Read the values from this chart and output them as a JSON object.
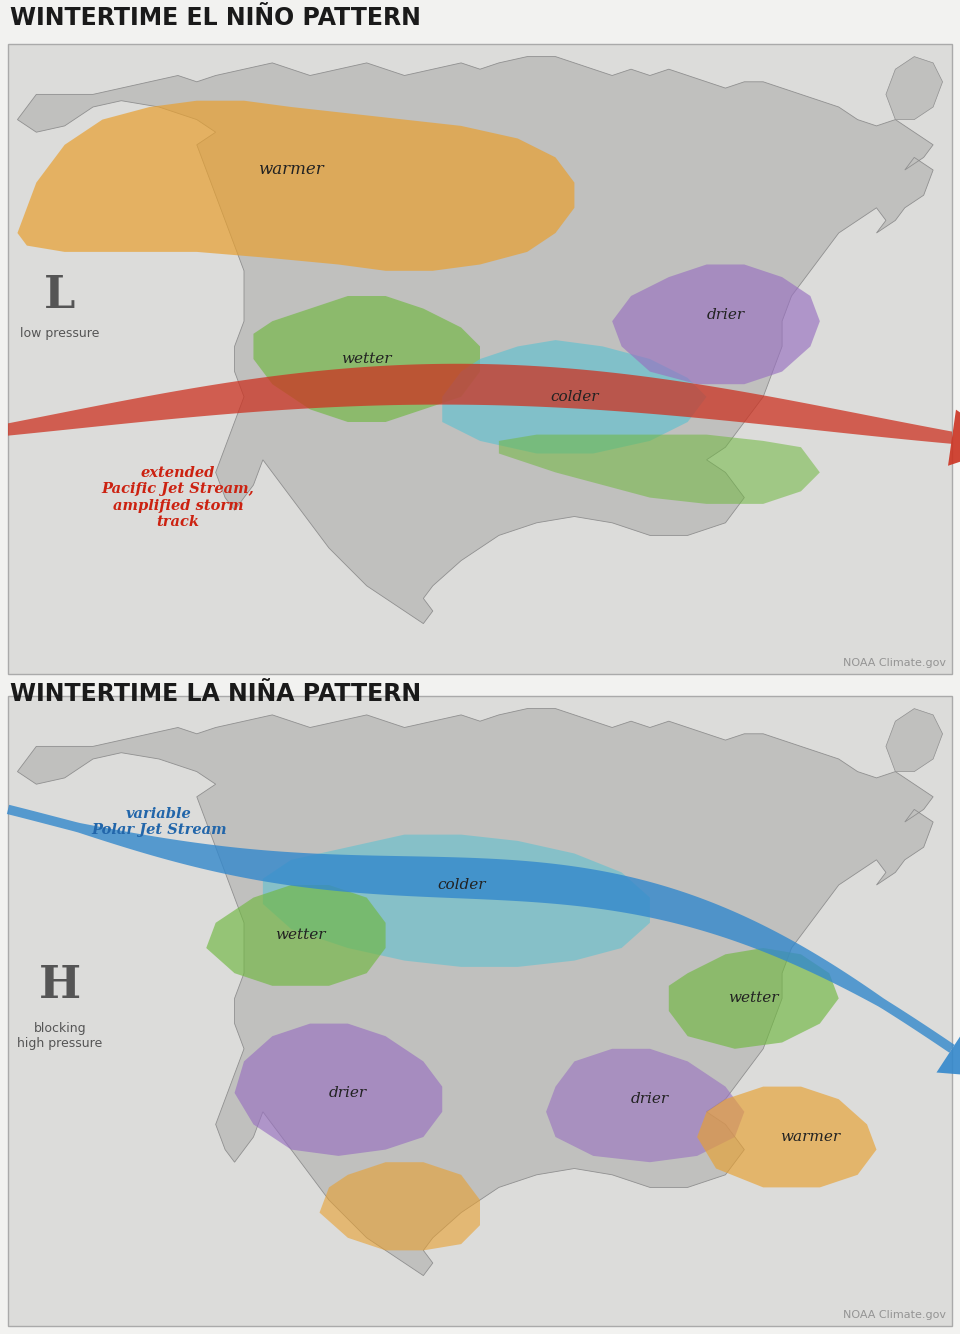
{
  "title1": "WINTERTIME EL NIÑO PATTERN",
  "title2": "WINTERTIME LA NIÑA PATTERN",
  "title_fontsize": 17,
  "title_color": "#1a1a1a",
  "bg_color": "#f2f2f0",
  "panel_bg": "#e8e8e6",
  "ocean_color": "#dcdcda",
  "land_color": "#c0c0be",
  "land_edge": "#909090",
  "noaa_credit": "NOAA Climate.gov",
  "elnino": {
    "warmer_color": "#e8a030",
    "warmer_alpha": 0.7,
    "warmer_label": "warmer",
    "wetter_color": "#70b840",
    "wetter_alpha": 0.65,
    "wetter_label": "wetter",
    "colder_color": "#60c0d0",
    "colder_alpha": 0.65,
    "colder_label": "colder",
    "drier_color": "#9870c0",
    "drier_alpha": 0.65,
    "drier_label": "drier",
    "arrow_color": "#cc3322",
    "arrow_label": "extended\nPacific Jet Stream,\namplified storm\ntrack",
    "arrow_label_color": "#cc2211",
    "pressure_label": "L",
    "pressure_sub": "low pressure",
    "pressure_color": "#555555"
  },
  "lanina": {
    "colder_color": "#60c0d0",
    "colder_alpha": 0.6,
    "colder_label": "colder",
    "wetter1_color": "#70b840",
    "wetter1_alpha": 0.65,
    "wetter1_label": "wetter",
    "wetter2_color": "#70b840",
    "wetter2_alpha": 0.65,
    "wetter2_label": "wetter",
    "drier1_color": "#9870c0",
    "drier1_alpha": 0.65,
    "drier1_label": "drier",
    "drier2_color": "#9870c0",
    "drier2_alpha": 0.6,
    "drier2_label": "drier",
    "warmer_color": "#e8a030",
    "warmer_alpha": 0.65,
    "warmer_label": "warmer",
    "arrow_color": "#3388cc",
    "arrow_label": "variable\nPolar Jet Stream",
    "arrow_label_color": "#2266aa",
    "pressure_label": "H",
    "pressure_sub": "blocking\nhigh pressure",
    "pressure_color": "#555555"
  }
}
